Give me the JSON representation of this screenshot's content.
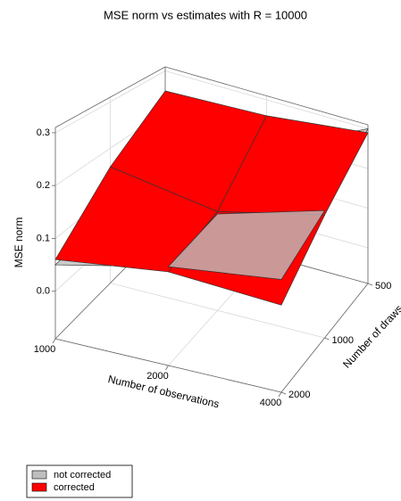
{
  "chart_data": {
    "type": "surface3d",
    "title": "MSE norm vs estimates with R = 10000",
    "xlabel": "Number of observations",
    "ylabel": "Number of draws",
    "zlabel": "MSE norm",
    "x": [
      1000,
      2000,
      4000
    ],
    "y": [
      500,
      1000,
      2000
    ],
    "xlim": [
      1000,
      4000
    ],
    "ylim": [
      500,
      2000
    ],
    "zlim": [
      -0.09,
      0.31
    ],
    "xlog": true,
    "ylog": true,
    "xticks": [
      1000,
      2000,
      4000
    ],
    "yticks": [
      500,
      1000,
      2000
    ],
    "zticks": [
      {
        "value": 0,
        "label": "0.0"
      },
      0.1,
      0.2,
      0.3
    ],
    "grid": true,
    "series": [
      {
        "name": "not corrected",
        "color": "#bebebe",
        "values": [
          [
            0.05,
            0.18,
            0.3
          ],
          [
            0.06,
            0.12,
            0.19
          ],
          [
            0.05,
            0.1,
            0.13
          ]
        ]
      },
      {
        "name": "corrected",
        "color": "#ff0000",
        "values": [
          [
            0.25,
            0.26,
            0.29
          ],
          [
            0.16,
            0.125,
            0.18
          ],
          [
            0.06,
            0.09,
            0.08
          ]
        ]
      }
    ]
  }
}
